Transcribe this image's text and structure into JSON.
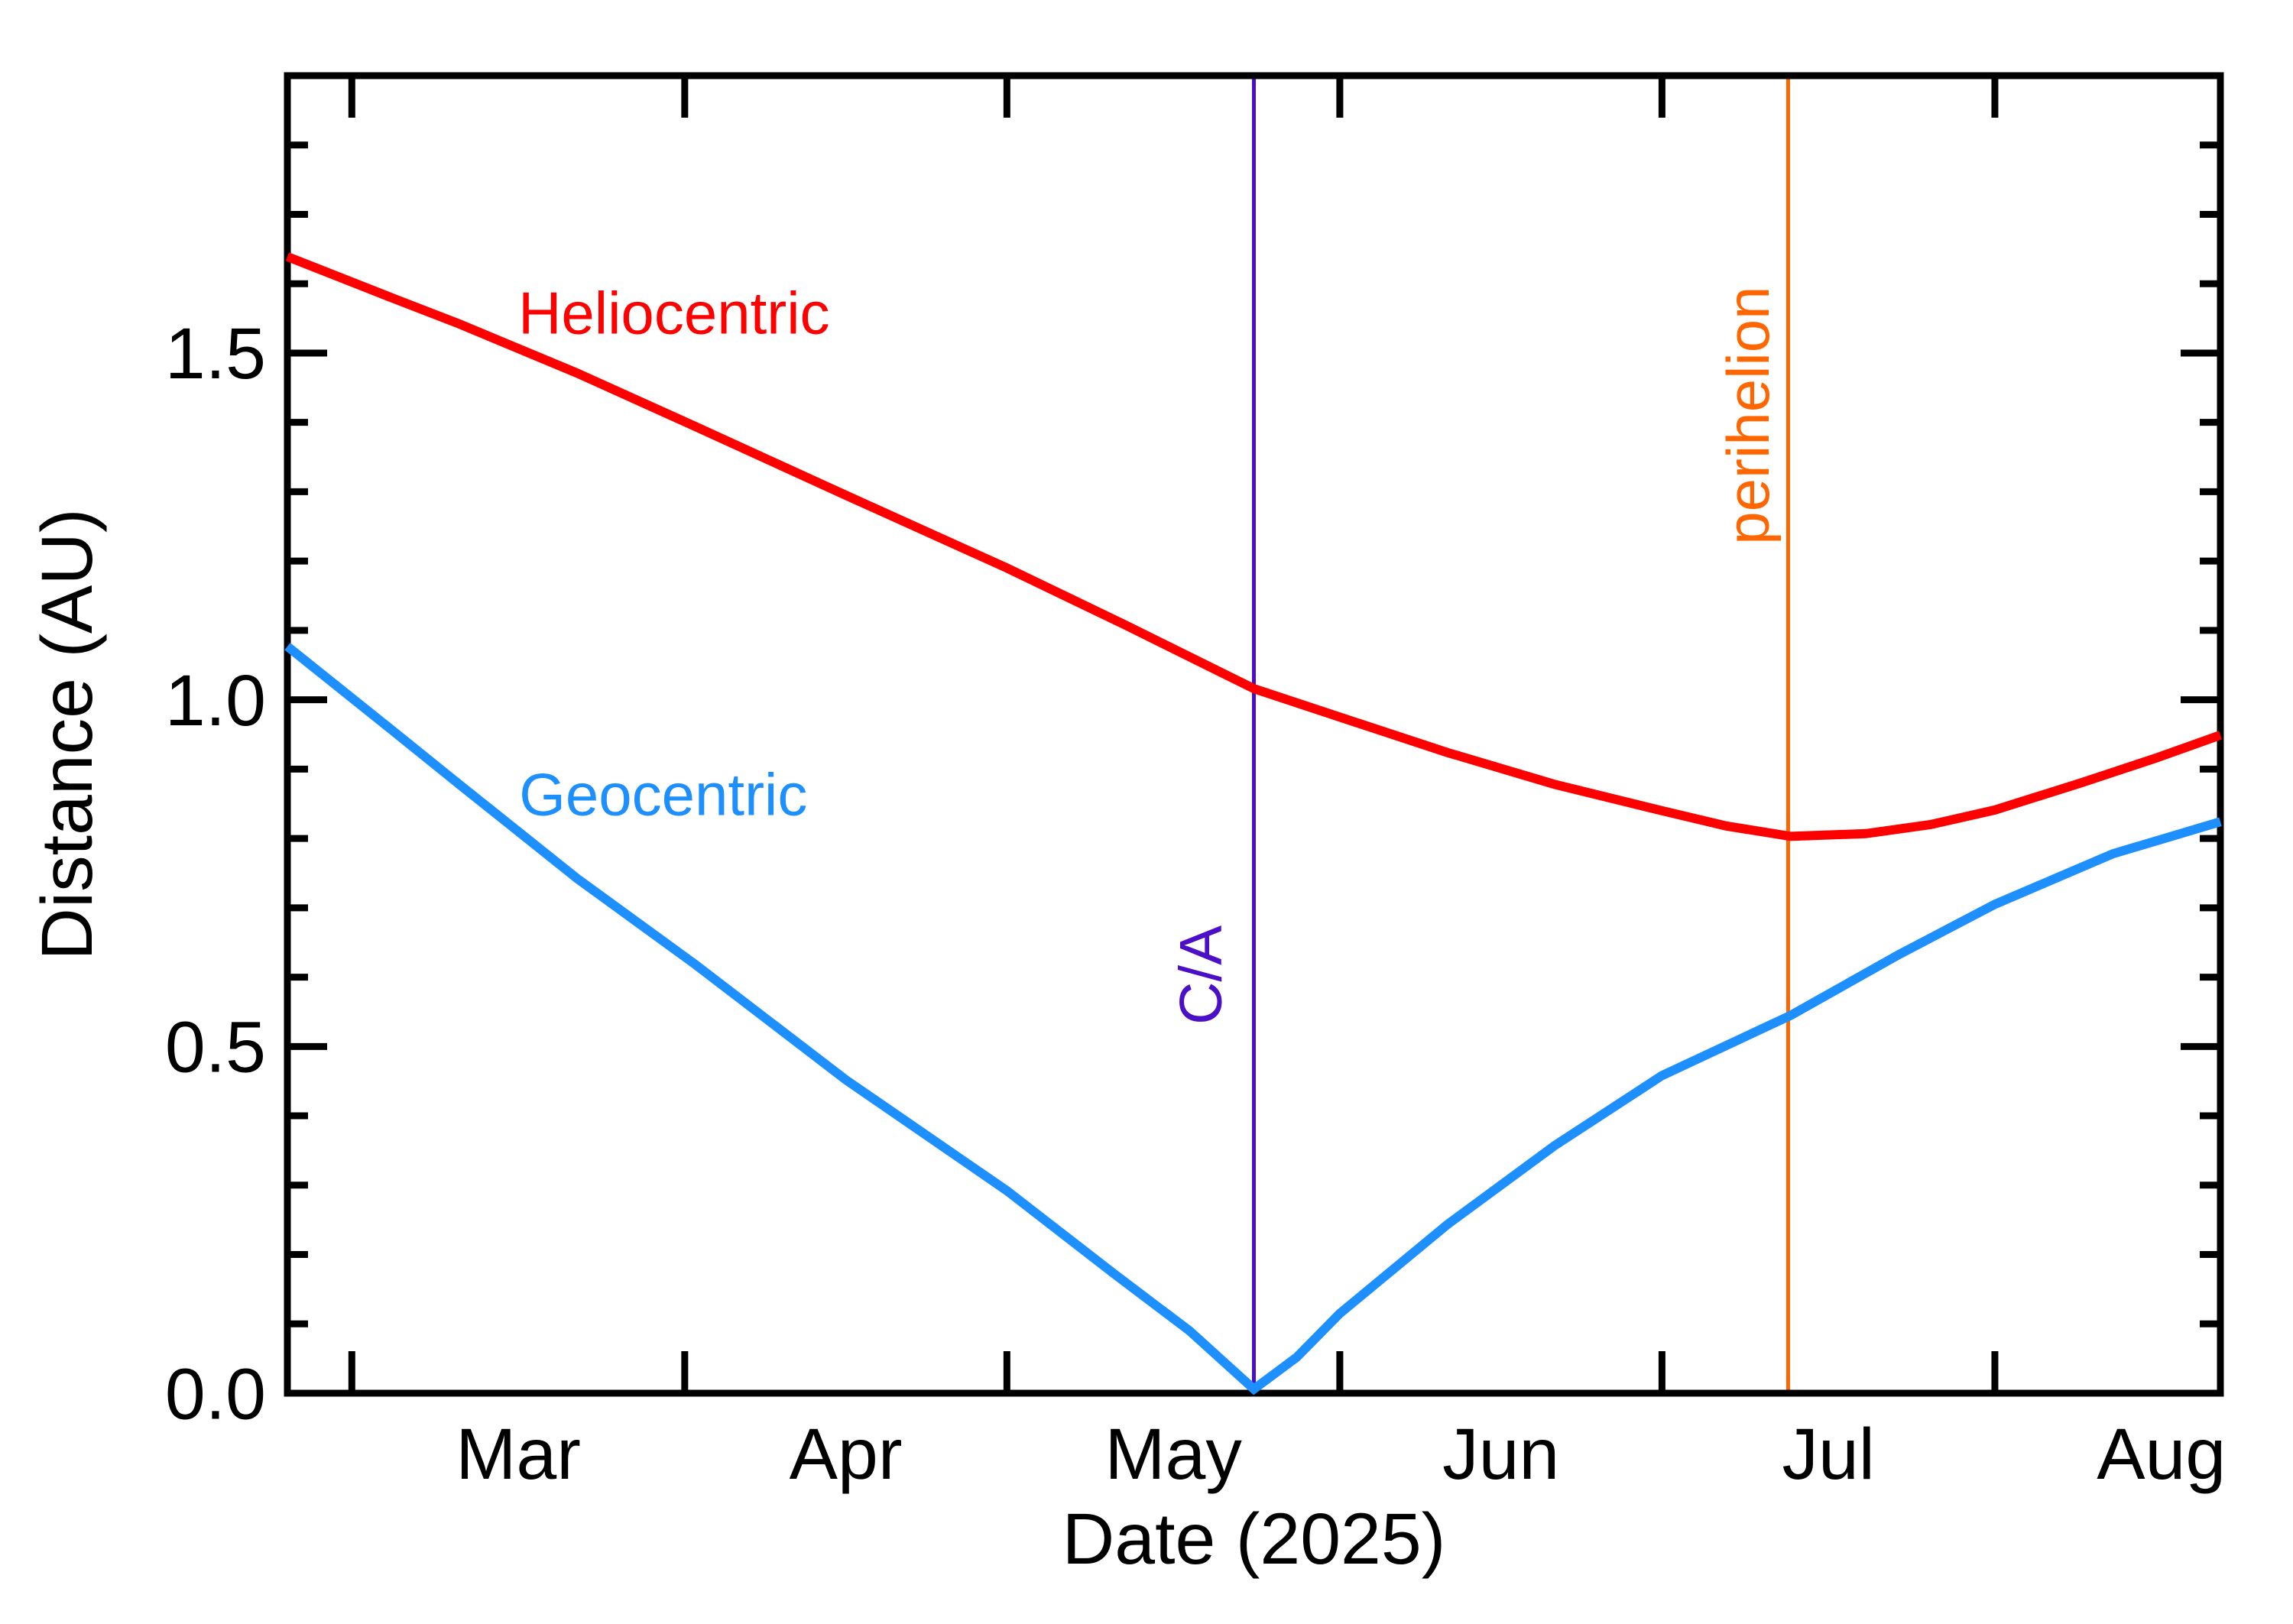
{
  "chart_data": {
    "type": "line",
    "title": "",
    "xlabel": "Date (2025)",
    "ylabel": "Distance (AU)",
    "grid": false,
    "legend_position": "inline-labels",
    "background": "#ffffff",
    "frame_color": "#000000",
    "x_domain": [
      "2025-02-23",
      "2025-08-22"
    ],
    "ylim": [
      0,
      1.9
    ],
    "y_minor_step": 0.1,
    "y_major_ticks": [
      {
        "value": 0.0,
        "label": "0.0"
      },
      {
        "value": 0.5,
        "label": "0.5"
      },
      {
        "value": 1.0,
        "label": "1.0"
      },
      {
        "value": 1.5,
        "label": "1.5"
      }
    ],
    "x_month_ticks": [
      "2025-03-01",
      "2025-04-01",
      "2025-05-01",
      "2025-06-01",
      "2025-07-01",
      "2025-08-01"
    ],
    "x_month_labels": [
      {
        "label": "Mar",
        "center": "2025-03-16T12:00"
      },
      {
        "label": "Apr",
        "center": "2025-04-16T00:00"
      },
      {
        "label": "May",
        "center": "2025-05-16T12:00"
      },
      {
        "label": "Jun",
        "center": "2025-06-16T00:00"
      },
      {
        "label": "Jul",
        "center": "2025-07-16T12:00"
      },
      {
        "label": "Aug",
        "center": "2025-08-16T12:00"
      }
    ],
    "series": [
      {
        "name": "Heliocentric",
        "color": "#ff0000",
        "points": [
          [
            "2025-02-23",
            1.639
          ],
          [
            "2025-03-05",
            1.578
          ],
          [
            "2025-03-11",
            1.542
          ],
          [
            "2025-03-22",
            1.471
          ],
          [
            "2025-04-02",
            1.394
          ],
          [
            "2025-04-16",
            1.295
          ],
          [
            "2025-05-01",
            1.19
          ],
          [
            "2025-05-12",
            1.108
          ],
          [
            "2025-05-24",
            1.016
          ],
          [
            "2025-06-01",
            0.975
          ],
          [
            "2025-06-11",
            0.924
          ],
          [
            "2025-06-21",
            0.878
          ],
          [
            "2025-07-01",
            0.84
          ],
          [
            "2025-07-07",
            0.818
          ],
          [
            "2025-07-13",
            0.803
          ],
          [
            "2025-07-20",
            0.807
          ],
          [
            "2025-07-26",
            0.82
          ],
          [
            "2025-08-01",
            0.841
          ],
          [
            "2025-08-09",
            0.88
          ],
          [
            "2025-08-16",
            0.916
          ],
          [
            "2025-08-22",
            0.949
          ]
        ]
      },
      {
        "name": "Geocentric",
        "color": "#1e8fff",
        "points": [
          [
            "2025-02-23",
            1.077
          ],
          [
            "2025-03-05",
            0.953
          ],
          [
            "2025-03-11",
            0.878
          ],
          [
            "2025-03-22",
            0.742
          ],
          [
            "2025-04-02",
            0.618
          ],
          [
            "2025-04-16",
            0.452
          ],
          [
            "2025-05-01",
            0.292
          ],
          [
            "2025-05-11",
            0.172
          ],
          [
            "2025-05-18",
            0.09
          ],
          [
            "2025-05-24",
            0.006
          ],
          [
            "2025-05-28",
            0.052
          ],
          [
            "2025-06-01",
            0.115
          ],
          [
            "2025-06-11",
            0.243
          ],
          [
            "2025-06-21",
            0.357
          ],
          [
            "2025-07-01",
            0.458
          ],
          [
            "2025-07-13",
            0.545
          ],
          [
            "2025-07-23",
            0.632
          ],
          [
            "2025-08-01",
            0.705
          ],
          [
            "2025-08-12",
            0.778
          ],
          [
            "2025-08-22",
            0.824
          ]
        ]
      }
    ],
    "event_lines": [
      {
        "id": "closest-approach",
        "label": "C/A",
        "date": "2025-05-24",
        "color": "#4b0fc8"
      },
      {
        "id": "perihelion",
        "label": "perihelion",
        "date": "2025-07-12T18:00",
        "color": "#ff6600"
      }
    ],
    "annotations": [
      {
        "id": "heliocentric-label",
        "text": "Heliocentric",
        "date": "2025-03-31",
        "au": 1.558,
        "color": "#ff0000",
        "rotate": 0
      },
      {
        "id": "geocentric-label",
        "text": "Geocentric",
        "date": "2025-03-30",
        "au": 0.864,
        "color": "#1e8fff",
        "rotate": 0
      },
      {
        "id": "ca-label",
        "text": "C/A",
        "date": "2025-05-19",
        "au": 0.603,
        "color": "#4b0fc8",
        "rotate": -90
      },
      {
        "id": "perihelion-label",
        "text": "perihelion",
        "date": "2025-07-09",
        "au": 1.41,
        "color": "#ff6600",
        "rotate": -90
      }
    ]
  }
}
